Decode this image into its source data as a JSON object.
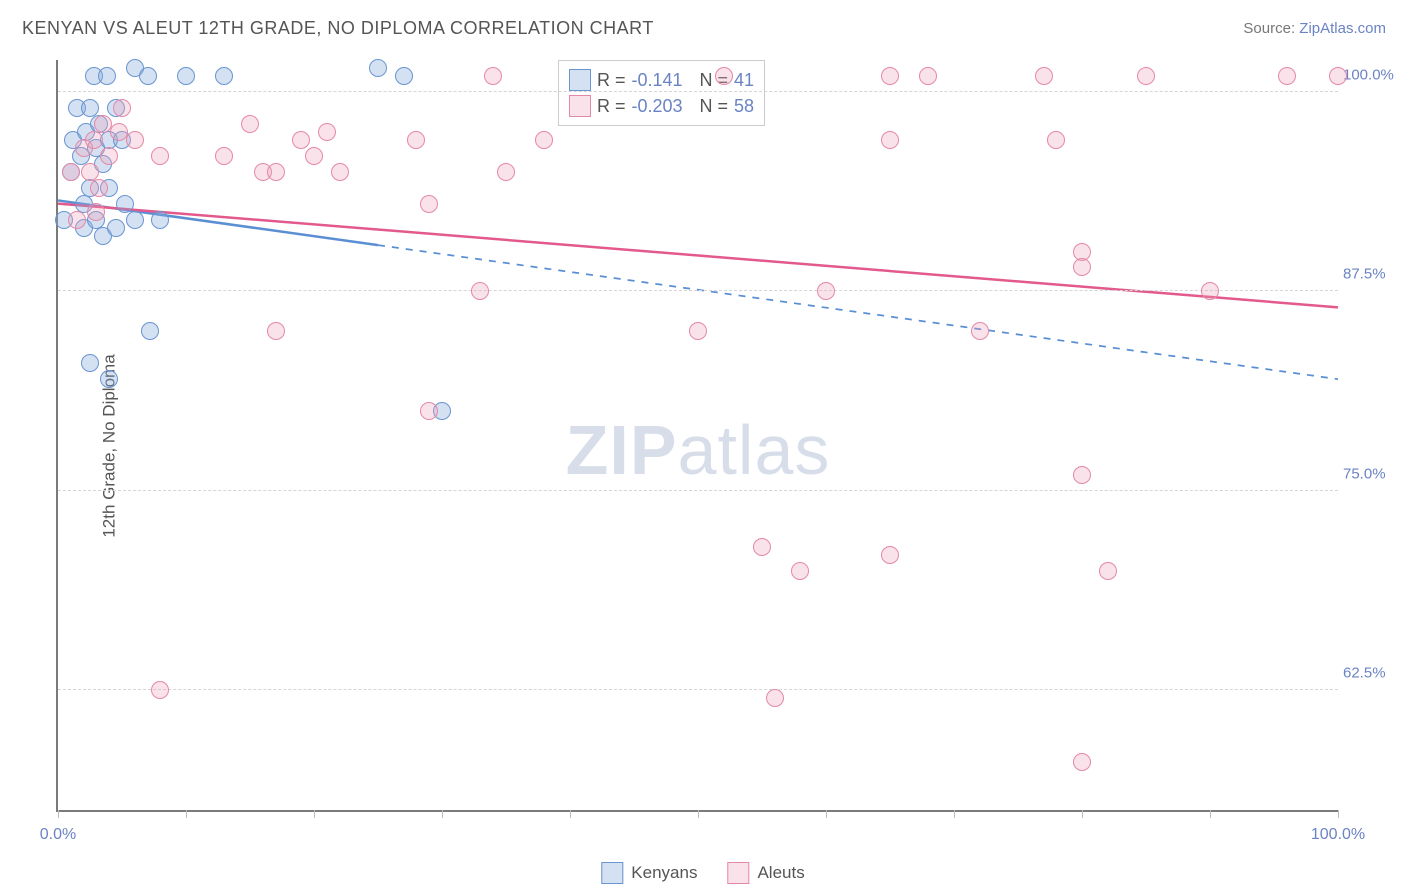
{
  "title": "KENYAN VS ALEUT 12TH GRADE, NO DIPLOMA CORRELATION CHART",
  "source_label": "Source: ",
  "source_link": "ZipAtlas.com",
  "ylabel": "12th Grade, No Diploma",
  "watermark_a": "ZIP",
  "watermark_b": "atlas",
  "chart": {
    "type": "scatter",
    "background_color": "#ffffff",
    "axis_color": "#7a7a7a",
    "grid_color": "#d5d5d5",
    "tick_color": "#6a83c4",
    "xlim": [
      0,
      100
    ],
    "ylim": [
      55,
      102
    ],
    "ytick_values": [
      62.5,
      75.0,
      87.5,
      100.0
    ],
    "ytick_labels": [
      "62.5%",
      "75.0%",
      "87.5%",
      "100.0%"
    ],
    "xtick_values": [
      0,
      10,
      20,
      30,
      40,
      50,
      60,
      70,
      80,
      90,
      100
    ],
    "xtick_labels": {
      "0": "0.0%",
      "100": "100.0%"
    },
    "point_radius": 9,
    "point_border_width": 1.5,
    "line_width": 2.5,
    "series": [
      {
        "name": "Kenyans",
        "fill": "rgba(132,170,220,0.35)",
        "stroke": "#6a95d0",
        "line_color": "#5b8fd4",
        "R": "-0.141",
        "N": "41",
        "trend": {
          "x1": 0,
          "y1": 93.2,
          "x2": 100,
          "y2": 82.0,
          "dash_from": 25
        },
        "points": [
          [
            0.5,
            92
          ],
          [
            1,
            95
          ],
          [
            1.2,
            97
          ],
          [
            1.5,
            99
          ],
          [
            1.8,
            96
          ],
          [
            2,
            93
          ],
          [
            2,
            91.5
          ],
          [
            2.2,
            97.5
          ],
          [
            2.5,
            99
          ],
          [
            2.5,
            94
          ],
          [
            2.8,
            101
          ],
          [
            3,
            96.5
          ],
          [
            3,
            92
          ],
          [
            3.2,
            98
          ],
          [
            3.5,
            95.5
          ],
          [
            3.5,
            91
          ],
          [
            3.8,
            101
          ],
          [
            4,
            94
          ],
          [
            4,
            97
          ],
          [
            4.5,
            99
          ],
          [
            4.5,
            91.5
          ],
          [
            5,
            97
          ],
          [
            5.2,
            93
          ],
          [
            6,
            101.5
          ],
          [
            6,
            92
          ],
          [
            7,
            101
          ],
          [
            7.2,
            85
          ],
          [
            8,
            92
          ],
          [
            10,
            101
          ],
          [
            13,
            101
          ],
          [
            2.5,
            83
          ],
          [
            4,
            82
          ],
          [
            25,
            101.5
          ],
          [
            27,
            101
          ],
          [
            30,
            80
          ]
        ]
      },
      {
        "name": "Aleuts",
        "fill": "rgba(240,160,185,0.30)",
        "stroke": "#e389a8",
        "line_color": "#e3598b",
        "R": "-0.203",
        "N": "58",
        "trend": {
          "x1": 0,
          "y1": 93.0,
          "x2": 100,
          "y2": 86.5,
          "dash_from": 100
        },
        "points": [
          [
            1,
            95
          ],
          [
            1.5,
            92
          ],
          [
            2,
            96.5
          ],
          [
            2.5,
            95
          ],
          [
            2.8,
            97
          ],
          [
            3,
            92.5
          ],
          [
            3.2,
            94
          ],
          [
            3.5,
            98
          ],
          [
            4,
            96
          ],
          [
            4.8,
            97.5
          ],
          [
            5,
            99
          ],
          [
            6,
            97
          ],
          [
            8,
            96
          ],
          [
            8,
            62.5
          ],
          [
            13,
            96
          ],
          [
            15,
            98
          ],
          [
            16,
            95
          ],
          [
            17,
            95
          ],
          [
            17,
            85
          ],
          [
            19,
            97
          ],
          [
            20,
            96
          ],
          [
            21,
            97.5
          ],
          [
            22,
            95
          ],
          [
            28,
            97
          ],
          [
            29,
            93
          ],
          [
            29,
            80
          ],
          [
            33,
            87.5
          ],
          [
            34,
            101
          ],
          [
            35,
            95
          ],
          [
            38,
            97
          ],
          [
            50,
            85
          ],
          [
            52,
            101
          ],
          [
            55,
            71.5
          ],
          [
            56,
            62
          ],
          [
            58,
            70
          ],
          [
            60,
            87.5
          ],
          [
            65,
            101
          ],
          [
            65,
            97
          ],
          [
            65,
            71
          ],
          [
            68,
            101
          ],
          [
            72,
            85
          ],
          [
            77,
            101
          ],
          [
            78,
            97
          ],
          [
            80,
            76
          ],
          [
            80,
            90
          ],
          [
            80,
            89
          ],
          [
            82,
            70
          ],
          [
            85,
            101
          ],
          [
            80,
            58
          ],
          [
            90,
            87.5
          ],
          [
            96,
            101
          ],
          [
            100,
            101
          ]
        ]
      }
    ]
  },
  "top_legend": {
    "R_label": "R =",
    "N_label": "N ="
  },
  "bottom_legend": [
    {
      "label": "Kenyans",
      "series": 0
    },
    {
      "label": "Aleuts",
      "series": 1
    }
  ]
}
